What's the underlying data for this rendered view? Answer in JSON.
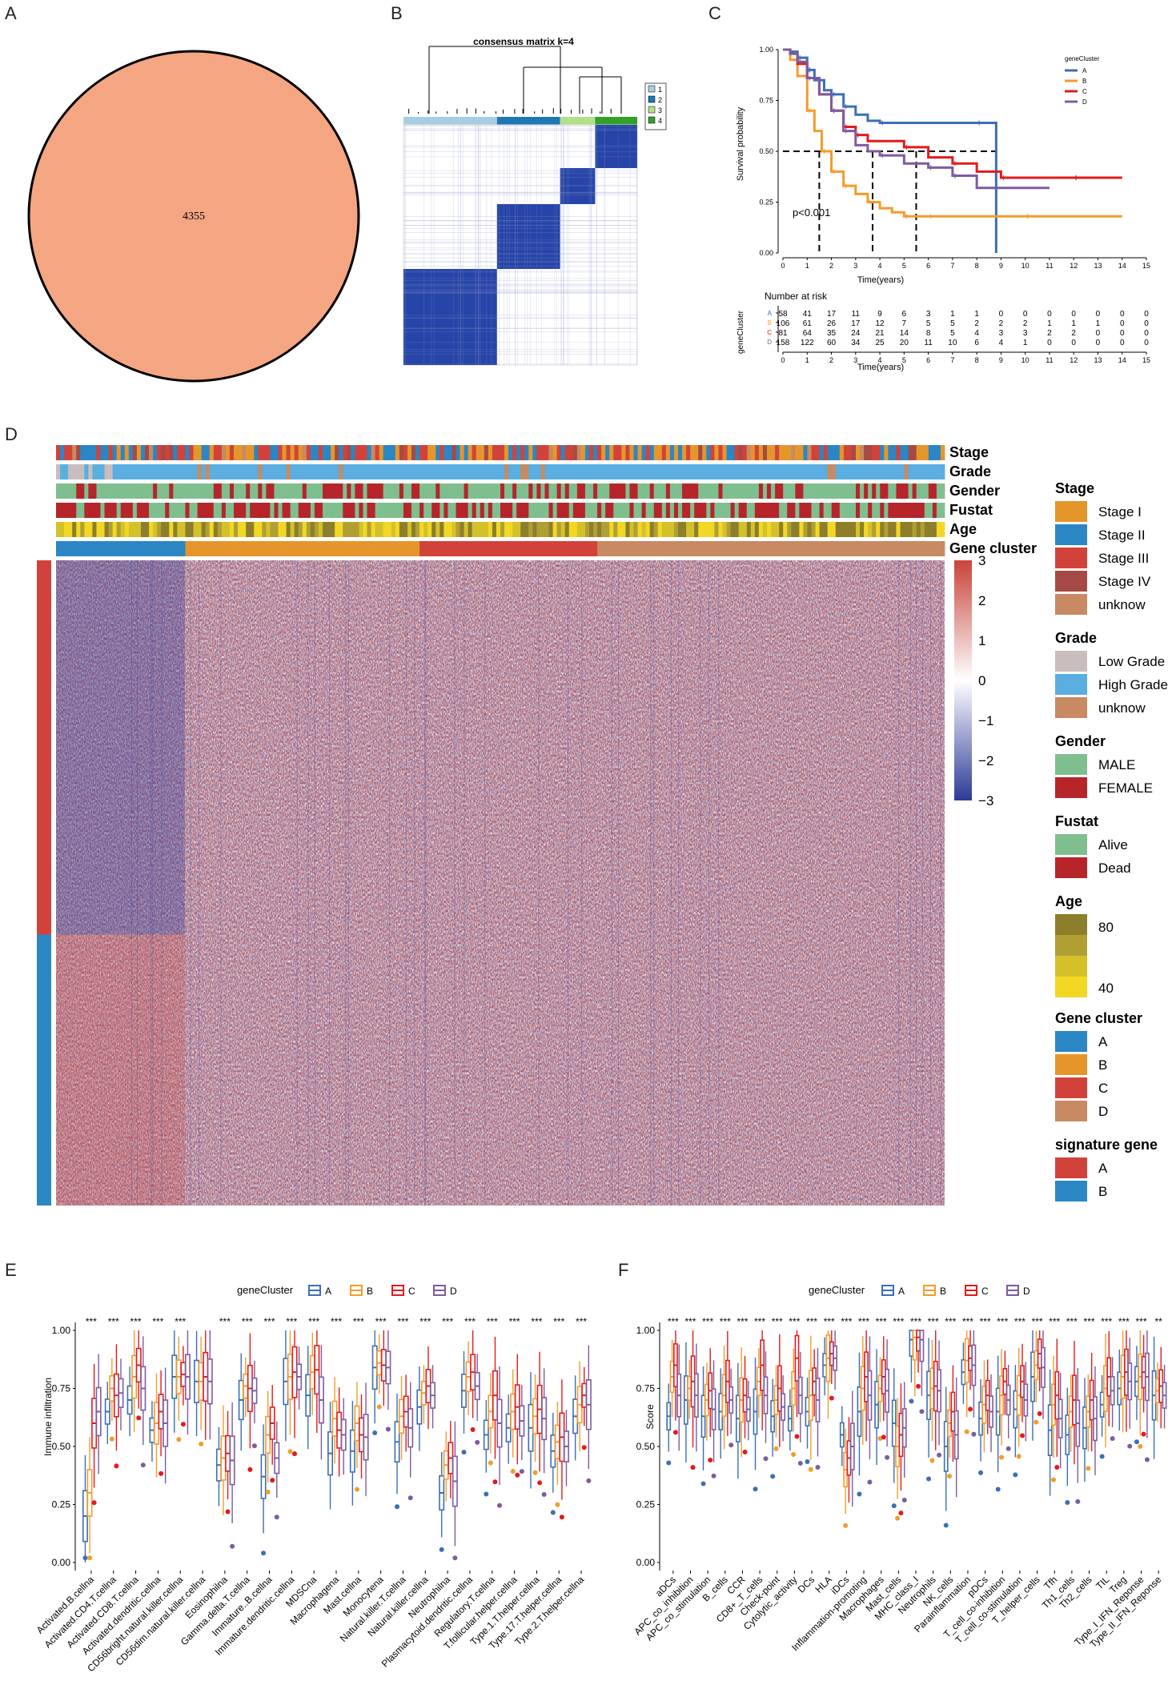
{
  "panels": {
    "A": "A",
    "B": "B",
    "C": "C",
    "D": "D",
    "E": "E",
    "F": "F"
  },
  "panelA": {
    "count": "4355",
    "fill": "#F4A582"
  },
  "chart_data": [
    {
      "id": "consensus",
      "type": "heatmap",
      "title": "consensus matrix k=4",
      "legend": [
        "1",
        "2",
        "3",
        "4"
      ],
      "cluster_colors": [
        "#A6CEE3",
        "#1F78B4",
        "#B2DF8A",
        "#33A02C"
      ],
      "block_order": [
        "1",
        "2",
        "3",
        "4"
      ],
      "block_fractions": [
        0.4,
        0.27,
        0.15,
        0.18
      ]
    },
    {
      "id": "survival",
      "type": "line",
      "xlabel": "Time(years)",
      "ylabel": "Survival probability",
      "x_ticks": [
        "0",
        "1",
        "2",
        "3",
        "4",
        "5",
        "6",
        "7",
        "8",
        "9",
        "10",
        "11",
        "12",
        "13",
        "14",
        "15"
      ],
      "y_ticks": [
        "0.00",
        "0.25",
        "0.50",
        "0.75",
        "1.00"
      ],
      "xlim": [
        0,
        15
      ],
      "ylim": [
        0,
        1
      ],
      "pvalue": "p<0.001",
      "legend_title": "geneCluster",
      "median_times": [
        1.5,
        3.7,
        5.5
      ],
      "series": [
        {
          "name": "A",
          "color": "#3B6FB6",
          "points": [
            [
              0,
              1
            ],
            [
              0.3,
              0.99
            ],
            [
              0.6,
              0.96
            ],
            [
              1,
              0.9
            ],
            [
              1.3,
              0.85
            ],
            [
              1.7,
              0.8
            ],
            [
              2,
              0.78
            ],
            [
              2.5,
              0.72
            ],
            [
              3,
              0.68
            ],
            [
              3.5,
              0.65
            ],
            [
              4,
              0.64
            ],
            [
              5,
              0.64
            ],
            [
              6,
              0.64
            ],
            [
              7,
              0.64
            ],
            [
              8,
              0.64
            ],
            [
              8.8,
              0.64
            ],
            [
              8.8,
              0.0
            ]
          ]
        },
        {
          "name": "B",
          "color": "#F39C2B",
          "points": [
            [
              0,
              1
            ],
            [
              0.3,
              0.95
            ],
            [
              0.6,
              0.87
            ],
            [
              1,
              0.7
            ],
            [
              1.3,
              0.6
            ],
            [
              1.6,
              0.5
            ],
            [
              2,
              0.4
            ],
            [
              2.5,
              0.33
            ],
            [
              3,
              0.29
            ],
            [
              3.5,
              0.25
            ],
            [
              4,
              0.22
            ],
            [
              4.5,
              0.2
            ],
            [
              5,
              0.18
            ],
            [
              6,
              0.18
            ],
            [
              8,
              0.18
            ],
            [
              10,
              0.18
            ],
            [
              12,
              0.18
            ],
            [
              14,
              0.18
            ]
          ]
        },
        {
          "name": "C",
          "color": "#E31A1C",
          "points": [
            [
              0,
              1
            ],
            [
              0.3,
              0.98
            ],
            [
              0.6,
              0.93
            ],
            [
              1,
              0.86
            ],
            [
              1.5,
              0.78
            ],
            [
              2,
              0.7
            ],
            [
              2.5,
              0.62
            ],
            [
              3,
              0.58
            ],
            [
              3.5,
              0.55
            ],
            [
              4,
              0.55
            ],
            [
              5,
              0.52
            ],
            [
              6,
              0.47
            ],
            [
              7,
              0.44
            ],
            [
              8,
              0.4
            ],
            [
              9,
              0.37
            ],
            [
              10,
              0.37
            ],
            [
              12,
              0.37
            ],
            [
              14,
              0.37
            ]
          ]
        },
        {
          "name": "D",
          "color": "#7E5BA0",
          "points": [
            [
              0,
              1
            ],
            [
              0.3,
              0.98
            ],
            [
              0.6,
              0.94
            ],
            [
              1,
              0.86
            ],
            [
              1.5,
              0.78
            ],
            [
              2,
              0.7
            ],
            [
              2.5,
              0.6
            ],
            [
              3,
              0.53
            ],
            [
              3.5,
              0.5
            ],
            [
              4,
              0.48
            ],
            [
              5,
              0.44
            ],
            [
              6,
              0.42
            ],
            [
              7,
              0.38
            ],
            [
              8,
              0.32
            ],
            [
              9,
              0.32
            ],
            [
              10,
              0.32
            ],
            [
              11,
              0.32
            ]
          ]
        }
      ],
      "risk_table": {
        "title": "Number at risk",
        "ylabel": "geneCluster",
        "rows": [
          {
            "name": "A",
            "values": [
              "58",
              "41",
              "17",
              "11",
              "9",
              "6",
              "3",
              "1",
              "1",
              "0",
              "0",
              "0",
              "0",
              "0",
              "0",
              "0"
            ]
          },
          {
            "name": "B",
            "values": [
              "106",
              "61",
              "26",
              "17",
              "12",
              "7",
              "5",
              "5",
              "2",
              "2",
              "2",
              "1",
              "1",
              "1",
              "0",
              "0"
            ]
          },
          {
            "name": "C",
            "values": [
              "81",
              "64",
              "35",
              "24",
              "21",
              "14",
              "8",
              "5",
              "4",
              "3",
              "3",
              "2",
              "2",
              "0",
              "0",
              "0"
            ]
          },
          {
            "name": "D",
            "values": [
              "158",
              "122",
              "60",
              "34",
              "25",
              "20",
              "11",
              "10",
              "6",
              "4",
              "1",
              "0",
              "0",
              "0",
              "0",
              "0"
            ]
          }
        ]
      }
    },
    {
      "id": "expression_heatmap",
      "type": "heatmap",
      "annotation_rows": [
        "Stage",
        "Grade",
        "Gender",
        "Fustat",
        "Age",
        "Gene cluster"
      ],
      "colorbar_ticks": [
        "3",
        "2",
        "1",
        "0",
        "−1",
        "−2",
        "−3"
      ],
      "colorbar_range": [
        -3,
        3
      ],
      "gene_cluster_fractions": [
        0.145,
        0.262,
        0.203,
        0.39
      ],
      "signature_fractions": [
        0.58,
        0.42
      ]
    },
    {
      "id": "immune_infiltration",
      "type": "box",
      "legend_title": "geneCluster",
      "ylabel": "Immune infiltration",
      "y_ticks": [
        "0.00",
        "0.25",
        "0.50",
        "0.75",
        "1.00"
      ],
      "ylim": [
        0,
        1
      ],
      "series_names": [
        "A",
        "B",
        "C",
        "D"
      ],
      "categories": [
        "Activated.B.cellna",
        "Activated.CD4.T.cellna",
        "Activated.CD8.T.cellna",
        "Activated.dendritic.cellna",
        "CD56bright.natural.killer.cellna",
        "CD56dim.natural.killer.cellna",
        "Eosinophilna",
        "Gamma.delta.T.cellna",
        "Immature..B.cellna",
        "Immature.dendritic.cellna",
        "MDSCna",
        "Macrophagena",
        "Mast.cellna",
        "Monocytena",
        "Natural.killer.T.cellna",
        "Natural.killer.cellna",
        "Neutrophilna",
        "Plasmacytoid.dendritic.cellna",
        "Regulatory.T.cellna",
        "T.follicular.helper.cellna",
        "Type.1.T.helper.cellna",
        "Type.17.T.helper.cellna",
        "Type.2.T.helper.cellna"
      ],
      "significance": [
        "***",
        "***",
        "***",
        "***",
        "***",
        "",
        "***",
        "***",
        "***",
        "***",
        "***",
        "***",
        "***",
        "***",
        "***",
        "***",
        "***",
        "***",
        "***",
        "***",
        "***",
        "***",
        "***"
      ],
      "medians": [
        [
          0.2,
          0.3,
          0.6,
          0.65
        ],
        [
          0.65,
          0.75,
          0.72,
          0.73
        ],
        [
          0.7,
          0.8,
          0.85,
          0.75
        ],
        [
          0.57,
          0.6,
          0.65,
          0.6
        ],
        [
          0.8,
          0.8,
          0.81,
          0.8
        ],
        [
          0.78,
          0.78,
          0.8,
          0.78
        ],
        [
          0.42,
          0.45,
          0.47,
          0.44
        ],
        [
          0.7,
          0.76,
          0.75,
          0.74
        ],
        [
          0.37,
          0.55,
          0.6,
          0.45
        ],
        [
          0.78,
          0.8,
          0.82,
          0.8
        ],
        [
          0.72,
          0.82,
          0.83,
          0.7
        ],
        [
          0.47,
          0.62,
          0.57,
          0.55
        ],
        [
          0.48,
          0.6,
          0.55,
          0.54
        ],
        [
          0.84,
          0.86,
          0.85,
          0.84
        ],
        [
          0.52,
          0.63,
          0.65,
          0.58
        ],
        [
          0.67,
          0.73,
          0.76,
          0.72
        ],
        [
          0.3,
          0.42,
          0.45,
          0.35
        ],
        [
          0.74,
          0.8,
          0.82,
          0.76
        ],
        [
          0.55,
          0.65,
          0.72,
          0.6
        ],
        [
          0.58,
          0.65,
          0.67,
          0.61
        ],
        [
          0.58,
          0.63,
          0.66,
          0.62
        ],
        [
          0.48,
          0.52,
          0.54,
          0.5
        ],
        [
          0.63,
          0.68,
          0.72,
          0.68
        ]
      ]
    },
    {
      "id": "immune_score",
      "type": "box",
      "legend_title": "geneCluster",
      "ylabel": "Score",
      "y_ticks": [
        "0.00",
        "0.25",
        "0.50",
        "0.75",
        "1.00"
      ],
      "ylim": [
        0,
        1
      ],
      "series_names": [
        "A",
        "B",
        "C",
        "D"
      ],
      "categories": [
        "aDCs",
        "APC_co_inhibition",
        "APC_co_stimulation",
        "B_cells",
        "CCR",
        "CD8+_T_cells",
        "Check-point",
        "Cytolytic_activity",
        "DCs",
        "HLA",
        "iDCs",
        "Inflammation-promoting",
        "Macrophages",
        "Mast_cells",
        "MHC_class_I",
        "Neutrophils",
        "NK_cells",
        "Parainflammation",
        "pDCs",
        "T_cell_co-inhibition",
        "T_cell_co-stimulation",
        "T_helper_cells",
        "Tfh",
        "Th1_cells",
        "Th2_cells",
        "TIL",
        "Treg",
        "Type_I_IFN_Reponse",
        "Type_II_IFN_Reponse"
      ],
      "significance": [
        "***",
        "***",
        "***",
        "***",
        "***",
        "***",
        "***",
        "***",
        "***",
        "***",
        "***",
        "***",
        "***",
        "***",
        "***",
        "***",
        "***",
        "***",
        "***",
        "***",
        "***",
        "***",
        "***",
        "***",
        "***",
        "***",
        "***",
        "***",
        "**"
      ],
      "medians": [
        [
          0.63,
          0.8,
          0.85,
          0.72
        ],
        [
          0.7,
          0.75,
          0.78,
          0.72
        ],
        [
          0.63,
          0.7,
          0.74,
          0.66
        ],
        [
          0.65,
          0.72,
          0.78,
          0.7
        ],
        [
          0.62,
          0.7,
          0.72,
          0.66
        ],
        [
          0.65,
          0.78,
          0.85,
          0.72
        ],
        [
          0.63,
          0.7,
          0.75,
          0.67
        ],
        [
          0.62,
          0.75,
          0.88,
          0.72
        ],
        [
          0.65,
          0.72,
          0.78,
          0.7
        ],
        [
          0.85,
          0.88,
          0.9,
          0.88
        ],
        [
          0.55,
          0.4,
          0.45,
          0.5
        ],
        [
          0.65,
          0.75,
          0.8,
          0.72
        ],
        [
          0.68,
          0.75,
          0.8,
          0.74
        ],
        [
          0.6,
          0.5,
          0.55,
          0.58
        ],
        [
          0.96,
          0.97,
          0.97,
          0.96
        ],
        [
          0.72,
          0.75,
          0.76,
          0.74
        ],
        [
          0.5,
          0.6,
          0.65,
          0.55
        ],
        [
          0.82,
          0.87,
          0.88,
          0.85
        ],
        [
          0.62,
          0.68,
          0.72,
          0.65
        ],
        [
          0.65,
          0.72,
          0.78,
          0.7
        ],
        [
          0.66,
          0.72,
          0.78,
          0.7
        ],
        [
          0.8,
          0.85,
          0.9,
          0.84
        ],
        [
          0.57,
          0.68,
          0.72,
          0.62
        ],
        [
          0.55,
          0.65,
          0.7,
          0.6
        ],
        [
          0.58,
          0.65,
          0.7,
          0.62
        ],
        [
          0.68,
          0.75,
          0.8,
          0.74
        ],
        [
          0.75,
          0.8,
          0.82,
          0.78
        ],
        [
          0.78,
          0.8,
          0.82,
          0.8
        ],
        [
          0.72,
          0.74,
          0.76,
          0.72
        ]
      ]
    }
  ],
  "legendD": {
    "stage": {
      "title": "Stage",
      "items": [
        {
          "label": "Stage I",
          "color": "#E5962B"
        },
        {
          "label": "Stage II",
          "color": "#2B86C4"
        },
        {
          "label": "Stage III",
          "color": "#D1433A"
        },
        {
          "label": "Stage IV",
          "color": "#A64A45"
        },
        {
          "label": "unknow",
          "color": "#C78A62"
        }
      ]
    },
    "grade": {
      "title": "Grade",
      "items": [
        {
          "label": "Low Grade",
          "color": "#C9BDBE"
        },
        {
          "label": "High Grade",
          "color": "#5AAEE0"
        },
        {
          "label": "unknow",
          "color": "#C78A62"
        }
      ]
    },
    "gender": {
      "title": "Gender",
      "items": [
        {
          "label": "MALE",
          "color": "#7FBF8F"
        },
        {
          "label": "FEMALE",
          "color": "#B5252A"
        }
      ]
    },
    "fustat": {
      "title": "Fustat",
      "items": [
        {
          "label": "Alive",
          "color": "#7FBF8F"
        },
        {
          "label": "Dead",
          "color": "#B5252A"
        }
      ]
    },
    "age": {
      "title": "Age",
      "labels": [
        "80",
        "40"
      ],
      "colors": [
        "#8C7E2B",
        "#B0A033",
        "#D4C12A",
        "#F2D825"
      ]
    },
    "genecluster": {
      "title": "Gene cluster",
      "items": [
        {
          "label": "A",
          "color": "#2B86C4"
        },
        {
          "label": "B",
          "color": "#E5962B"
        },
        {
          "label": "C",
          "color": "#D1433A"
        },
        {
          "label": "D",
          "color": "#C78A62"
        }
      ]
    },
    "signature": {
      "title": "signature gene",
      "items": [
        {
          "label": "A",
          "color": "#D1433A"
        },
        {
          "label": "B",
          "color": "#2B86C4"
        }
      ]
    }
  },
  "cluster_colors": {
    "A": "#3B6FB6",
    "B": "#F39C2B",
    "C": "#E31A1C",
    "D": "#7E5BA0"
  }
}
